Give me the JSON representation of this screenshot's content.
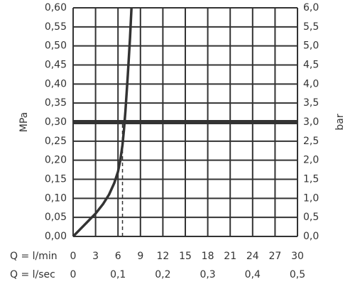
{
  "chart_data": {
    "type": "line",
    "left_axis": {
      "label": "MPa",
      "ylim": [
        0,
        0.6
      ],
      "ticks": [
        "0,00",
        "0,05",
        "0,10",
        "0,15",
        "0,20",
        "0,25",
        "0,30",
        "0,35",
        "0,40",
        "0,45",
        "0,50",
        "0,55",
        "0,60"
      ]
    },
    "right_axis": {
      "label": "bar",
      "ylim": [
        0,
        6
      ],
      "ticks": [
        "0,0",
        "0,5",
        "1,0",
        "1,5",
        "2,0",
        "2,5",
        "3,0",
        "3,5",
        "4,0",
        "4,5",
        "5,0",
        "5,5",
        "6,0"
      ]
    },
    "x_axis_lmin": {
      "prefix": "Q = l/min",
      "xlim": [
        0,
        30
      ],
      "ticks": [
        "0",
        "3",
        "6",
        "9",
        "12",
        "15",
        "18",
        "21",
        "24",
        "27",
        "30"
      ]
    },
    "x_axis_lsec": {
      "prefix": "Q = l/sec",
      "ticks": [
        "0",
        "0,1",
        "0,2",
        "0,3",
        "0,4",
        "0,5"
      ]
    },
    "grid": true,
    "series": [
      {
        "x": [
          0,
          1,
          2,
          3,
          4,
          4.8,
          5.5,
          6.0,
          6.3,
          6.6,
          6.8,
          7.0,
          7.3,
          7.6,
          7.8
        ],
        "y": [
          0.0,
          0.02,
          0.04,
          0.06,
          0.085,
          0.11,
          0.14,
          0.17,
          0.2,
          0.24,
          0.28,
          0.33,
          0.42,
          0.52,
          0.6
        ]
      }
    ],
    "reference_line_y": 0.3,
    "dashed_marker_x": 6.6,
    "colors": {
      "curve": "#333333",
      "grid": "#333333",
      "text": "#333333"
    }
  }
}
